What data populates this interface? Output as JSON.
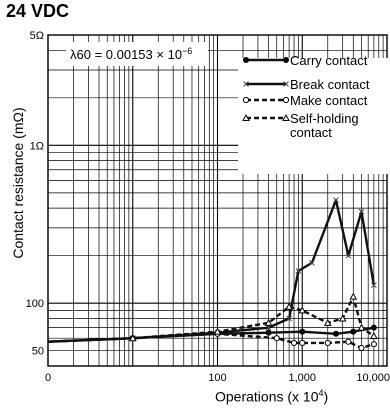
{
  "header": {
    "voltage": "24 VDC"
  },
  "chart_data": {
    "type": "line",
    "title": "",
    "xlabel": "Operations (x 10",
    "xlabel_exp": "4",
    "xlabel_close": ")",
    "ylabel": "Contact resistance (mΩ)",
    "x_scale": "log",
    "y_scale": "log",
    "xlim": [
      0,
      10000
    ],
    "ylim": [
      40,
      5000
    ],
    "grid": true,
    "x_ticks": [
      {
        "value": 1,
        "label": "0"
      },
      {
        "value": 100,
        "label": "100"
      },
      {
        "value": 1000,
        "label": "1,000"
      },
      {
        "value": 10000,
        "label": "10,000"
      }
    ],
    "y_ticks": [
      {
        "value": 50,
        "label": "50"
      },
      {
        "value": 100,
        "label": "100"
      },
      {
        "value": 1000,
        "label": "1Ω"
      },
      {
        "value": 5000,
        "label": "5Ω"
      }
    ],
    "annotation": {
      "prefix": "λ60 = 0.00153 × 10",
      "exp": "−6"
    },
    "legend_position": "top-right",
    "series": [
      {
        "name": "Carry contact",
        "style": "solid-dot",
        "x": [
          1,
          10,
          100,
          400,
          1000,
          2500,
          4000,
          7000
        ],
        "y": [
          57,
          60,
          64,
          65,
          66,
          64,
          66,
          70
        ]
      },
      {
        "name": "Break contact",
        "style": "solid-cross",
        "x": [
          1,
          10,
          100,
          400,
          700,
          900,
          1300,
          2500,
          3500,
          5000,
          7000
        ],
        "y": [
          57,
          60,
          65,
          70,
          80,
          160,
          180,
          450,
          200,
          380,
          130
        ]
      },
      {
        "name": "Make contact",
        "style": "dash-circle",
        "x": [
          1,
          10,
          100,
          500,
          800,
          1000,
          2000,
          3500,
          5000,
          7000
        ],
        "y": [
          57,
          60,
          64,
          60,
          56,
          56,
          56,
          57,
          52,
          55
        ]
      },
      {
        "name": "Self-holding",
        "name_line2": "contact",
        "style": "dash-triangle",
        "x": [
          1,
          10,
          100,
          400,
          700,
          1000,
          2000,
          3000,
          4000,
          5000,
          7000
        ],
        "y": [
          57,
          60,
          66,
          75,
          95,
          90,
          75,
          80,
          110,
          70,
          62
        ]
      }
    ]
  }
}
